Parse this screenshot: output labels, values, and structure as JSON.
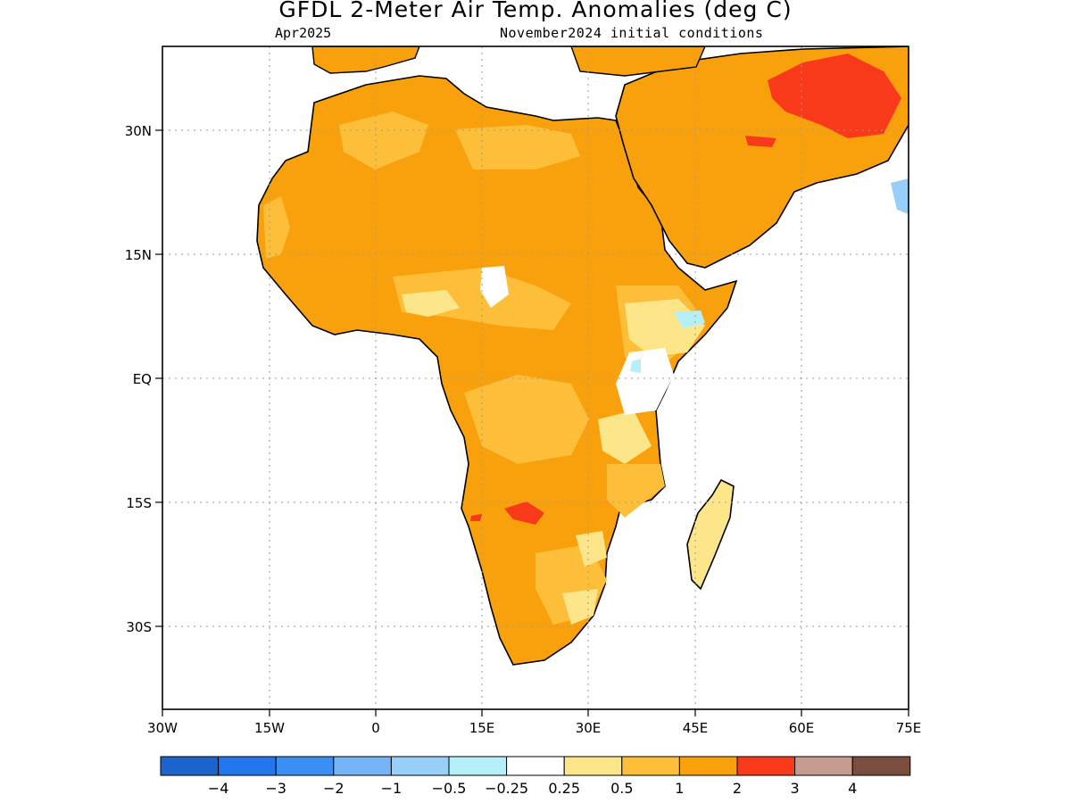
{
  "header": {
    "title": "GFDL 2-Meter Air Temp. Anomalies (deg C)",
    "valid_month": "Apr2025",
    "init_conditions": "November2024 initial conditions"
  },
  "map": {
    "region": "Africa",
    "lon_range": [
      -30,
      75
    ],
    "lat_range": [
      -40,
      40
    ],
    "x_ticks": [
      "30W",
      "15W",
      "0",
      "15E",
      "30E",
      "45E",
      "60E",
      "75E"
    ],
    "y_ticks": [
      "30N",
      "15N",
      "EQ",
      "15S",
      "30S"
    ],
    "grid": "dotted",
    "coastlines": true,
    "country_borders": true
  },
  "colorbar": {
    "labels": [
      "-4",
      "-3",
      "-2",
      "-1",
      "-0.5",
      "-0.25",
      "0.25",
      "0.5",
      "1",
      "2",
      "3",
      "4"
    ],
    "colors": [
      "#1c63cc",
      "#2277ee",
      "#3b8ff2",
      "#75b4f7",
      "#98cff9",
      "#b5eff8",
      "#ffffff",
      "#fde68a",
      "#fdbf3a",
      "#f9a10c",
      "#f8391a",
      "#c79c90",
      "#7a4e3f"
    ]
  },
  "anomaly_colors": {
    "light": "#fde68a",
    "moderate": "#fdbf3a",
    "strong": "#f9a10c",
    "very_strong": "#f8391a",
    "cool": "#b5eff8",
    "cooler": "#98cff9"
  }
}
